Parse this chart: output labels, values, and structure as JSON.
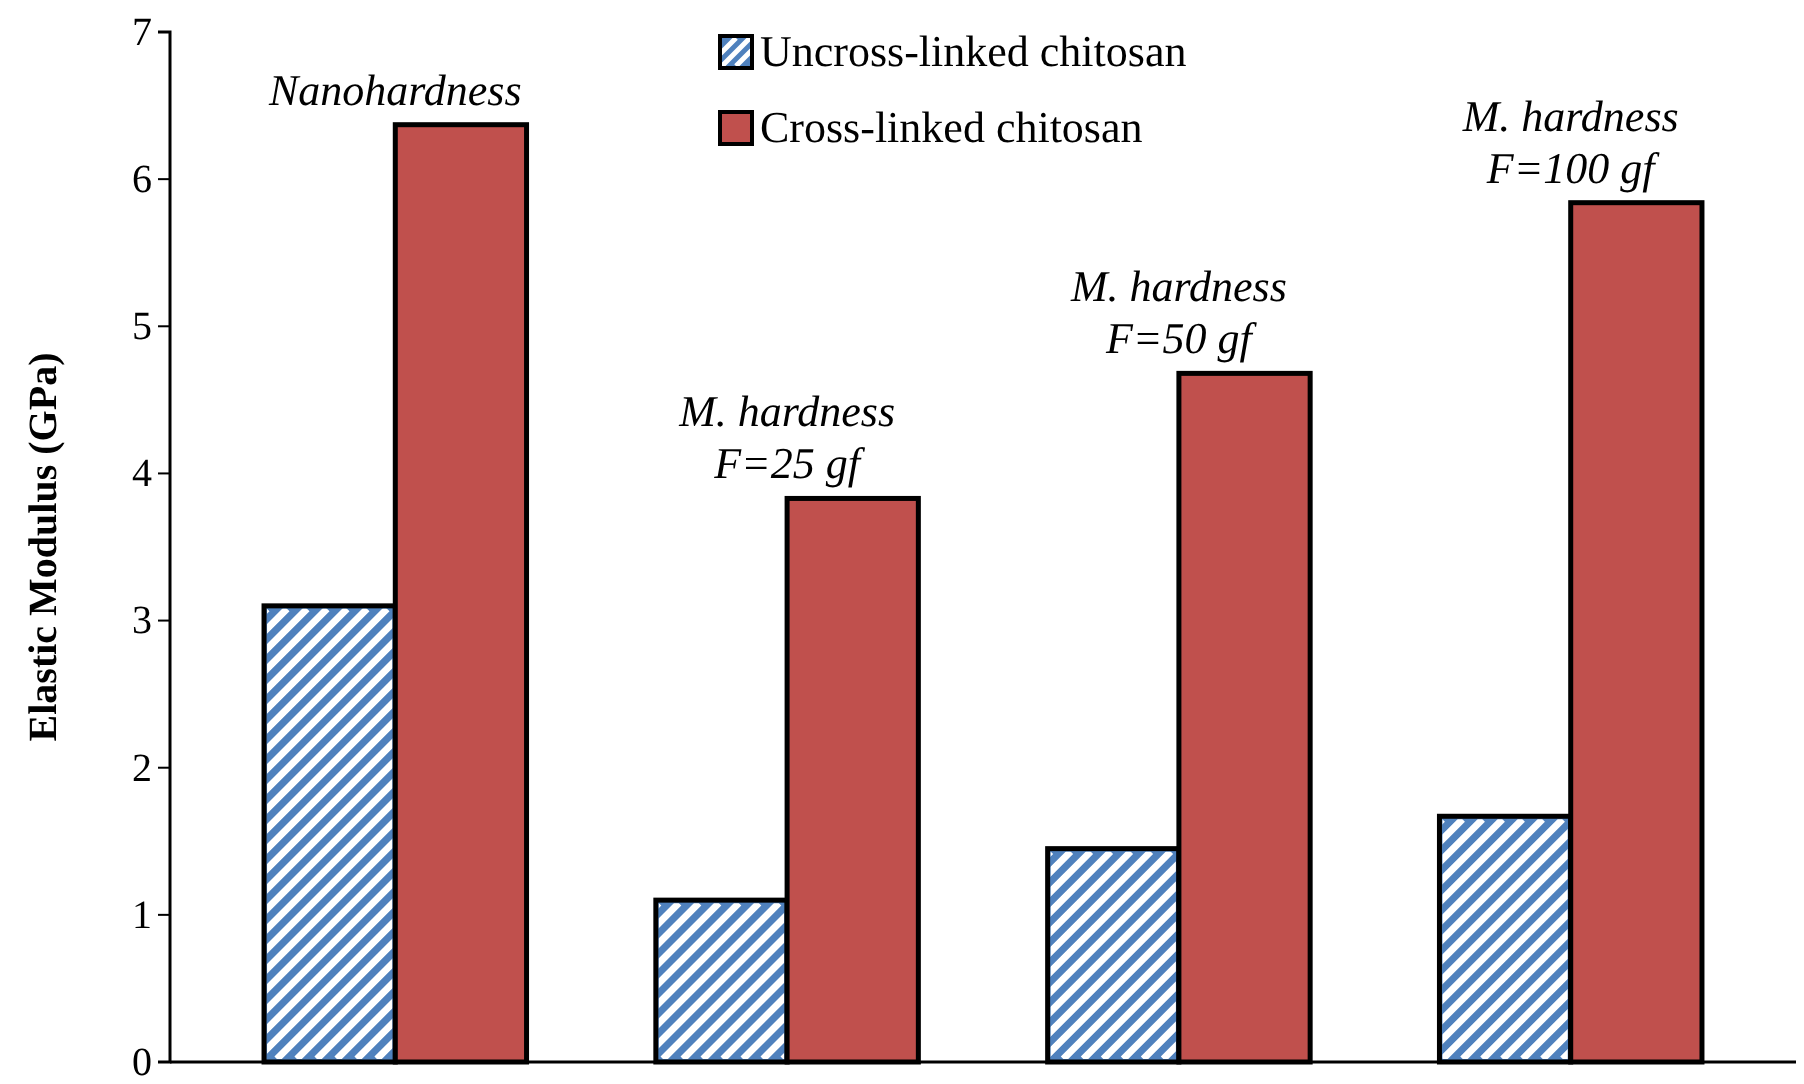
{
  "chart_data": {
    "type": "bar",
    "ylabel": "Elastic Modulus (GPa)",
    "categories": [
      "Nanohardness",
      "M. hardness\nF=25 gf",
      "M. hardness\nF=50 gf",
      "M. hardness\nF=100 gf"
    ],
    "series": [
      {
        "name": "Uncross-linked chitosan",
        "color": "#4f81bd",
        "values": [
          3.1,
          1.1,
          1.45,
          1.67
        ]
      },
      {
        "name": "Cross-linked chitosan",
        "color": "#c0504d",
        "values": [
          6.37,
          3.83,
          4.68,
          5.84
        ]
      }
    ],
    "ylim": [
      0,
      7
    ],
    "yticks": [
      0,
      1,
      2,
      3,
      4,
      5,
      6,
      7
    ],
    "grid": false,
    "legend": "top"
  }
}
